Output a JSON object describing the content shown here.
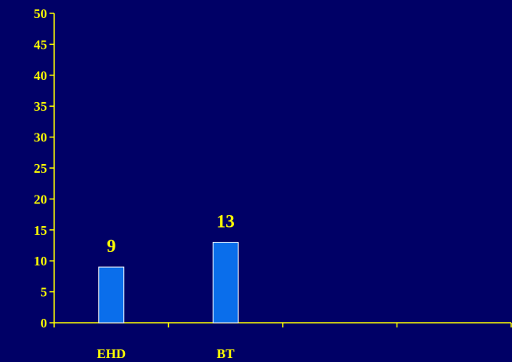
{
  "chart_data": {
    "type": "bar",
    "categories": [
      "EHD",
      "BT",
      "",
      ""
    ],
    "values": [
      9,
      13,
      null,
      null
    ],
    "data_labels": [
      "9",
      "13",
      "",
      ""
    ],
    "ylim": [
      0,
      50
    ],
    "yticks": [
      0,
      5,
      10,
      15,
      20,
      25,
      30,
      35,
      40,
      45,
      50
    ],
    "title": "",
    "xlabel": "",
    "ylabel": "",
    "grid": false,
    "colors": {
      "background": "#000066",
      "axis": "#FFFF00",
      "text": "#FFFF00",
      "bar_fill": "#0A6EEB",
      "bar_stroke": "#FFFFFF"
    }
  }
}
